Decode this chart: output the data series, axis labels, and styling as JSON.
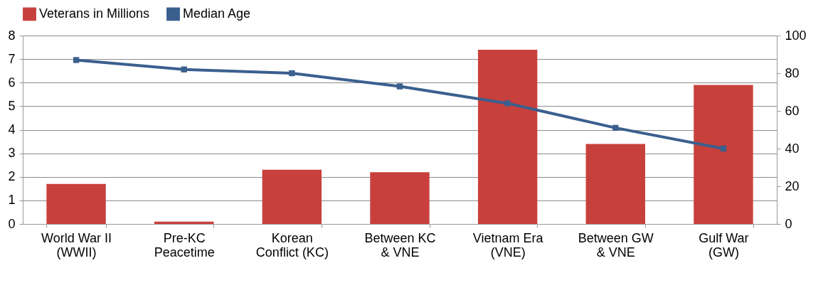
{
  "chart_data": {
    "type": "bar",
    "categories": [
      "World War II\n(WWII)",
      "Pre-KC\nPeacetime",
      "Korean\nConflict (KC)",
      "Between KC\n& VNE",
      "Vietnam Era\n(VNE)",
      "Between GW\n& VNE",
      "Gulf War\n(GW)"
    ],
    "series": [
      {
        "name": "Veterans in Millions",
        "color": "#c8403c",
        "values": [
          1.7,
          0.1,
          2.3,
          2.2,
          7.4,
          3.4,
          5.9
        ]
      },
      {
        "name": "Median Age",
        "type": "line",
        "axis": "y2",
        "color": "#3b5f8e",
        "values": [
          87,
          82,
          80,
          73,
          64,
          51,
          40
        ]
      }
    ],
    "ylim": [
      0,
      8
    ],
    "yticks": [
      0,
      1,
      2,
      3,
      4,
      5,
      6,
      7,
      8
    ],
    "y2lim": [
      0,
      100
    ],
    "y2ticks": [
      0,
      20,
      40,
      60,
      80,
      100
    ],
    "grid": "y",
    "legend": "top",
    "marker": "square",
    "line_style": "solid"
  }
}
